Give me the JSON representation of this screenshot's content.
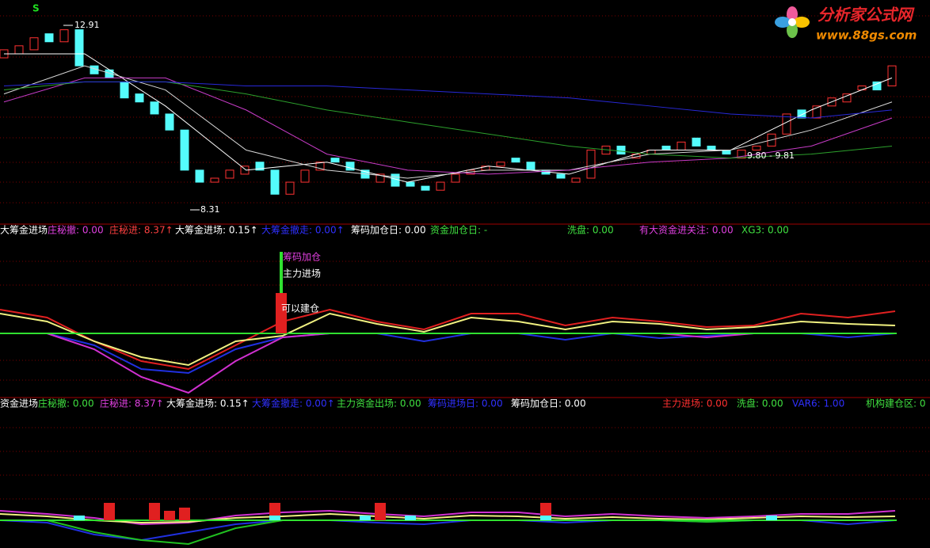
{
  "logo": {
    "name": "分析家公式网",
    "url": "www.88gs.com"
  },
  "price_panel": {
    "signal": "S",
    "high": 12.91,
    "low": 8.31,
    "range_label": "9.80 - 9.81",
    "candles": {
      "open": [
        12.1,
        12.2,
        12.3,
        12.7,
        12.5,
        12.8,
        11.9,
        11.8,
        11.5,
        11.2,
        11.0,
        10.7,
        10.3,
        9.3,
        9.0,
        9.1,
        9.2,
        9.5,
        9.3,
        8.7,
        9.0,
        9.3,
        9.6,
        9.5,
        9.3,
        9.0,
        9.2,
        9.0,
        8.9,
        8.8,
        9.0,
        9.2,
        9.3,
        9.4,
        9.6,
        9.5,
        9.3,
        9.2,
        9.0,
        9.1,
        9.7,
        9.9,
        9.6,
        9.7,
        9.9,
        9.8,
        10.1,
        9.9,
        9.8,
        9.6,
        9.8,
        9.9,
        10.2,
        10.8,
        10.6,
        10.9,
        11.0,
        11.3,
        11.5,
        11.4
      ],
      "close": [
        12.3,
        12.4,
        12.6,
        12.5,
        12.8,
        11.9,
        11.7,
        11.6,
        11.1,
        11.0,
        10.7,
        10.3,
        9.3,
        9.0,
        9.1,
        9.3,
        9.4,
        9.3,
        8.7,
        9.0,
        9.3,
        9.5,
        9.5,
        9.3,
        9.1,
        9.2,
        8.9,
        8.9,
        8.8,
        9.0,
        9.2,
        9.3,
        9.4,
        9.5,
        9.5,
        9.3,
        9.2,
        9.1,
        9.1,
        9.8,
        9.9,
        9.7,
        9.7,
        9.8,
        9.8,
        10.0,
        9.9,
        9.8,
        9.7,
        9.8,
        9.9,
        10.2,
        10.7,
        10.6,
        10.9,
        11.1,
        11.2,
        11.4,
        11.3,
        11.9
      ]
    },
    "ma_lines": [
      {
        "color": "#ffffff",
        "values": [
          12.2,
          12.2,
          10.9,
          9.3,
          9.5,
          9.0,
          9.4,
          9.2,
          9.8,
          9.8,
          10.8,
          11.6
        ]
      },
      {
        "color": "#d8d8d8",
        "values": [
          11.2,
          11.9,
          11.3,
          9.8,
          9.3,
          9.1,
          9.3,
          9.3,
          9.7,
          9.8,
          10.3,
          11.0
        ]
      },
      {
        "color": "#c83cc8",
        "values": [
          11.0,
          11.6,
          11.6,
          10.8,
          9.7,
          9.3,
          9.2,
          9.3,
          9.5,
          9.6,
          9.9,
          10.6
        ]
      },
      {
        "color": "#2ca02c",
        "values": [
          11.3,
          11.5,
          11.5,
          11.2,
          10.8,
          10.5,
          10.2,
          9.9,
          9.7,
          9.6,
          9.7,
          9.9
        ]
      },
      {
        "color": "#2828d8",
        "values": [
          11.4,
          11.5,
          11.5,
          11.4,
          11.4,
          11.3,
          11.2,
          11.1,
          10.9,
          10.7,
          10.6,
          10.8
        ]
      }
    ]
  },
  "panel2": {
    "header": [
      {
        "text": "大筹金进场",
        "color": "#ffffff"
      },
      {
        "text": "庄秘撤: 0.00",
        "color": "#e040e0"
      },
      {
        "text": "庄秘进: 8.37↑",
        "color": "#ff4040"
      },
      {
        "text": "大筹金进场: 0.15↑",
        "color": "#ffffff"
      },
      {
        "text": "大筹金撤走: 0.00↑",
        "color": "#3030ff"
      },
      {
        "text": "筹码加仓日: 0.00",
        "color": "#ffffff"
      },
      {
        "text": "资金加仓日: -",
        "color": "#40e040"
      },
      {
        "text": "洗盘: 0.00",
        "color": "#40e040"
      },
      {
        "text": "有大资金进关注: 0.00",
        "color": "#e040e0"
      },
      {
        "text": "XG3: 0.00",
        "color": "#40e040"
      }
    ],
    "annotations": [
      {
        "text": "筹码加仓",
        "color": "#e040e0"
      },
      {
        "text": "主力进场",
        "color": "#ffffff"
      },
      {
        "text": "可以建仓",
        "color": "#ffffff"
      }
    ],
    "signal_line": 10.3,
    "signal_bar": 5.1,
    "series": [
      {
        "color": "#e02020",
        "values": [
          3.0,
          2.0,
          -1.0,
          -3.5,
          -4.5,
          -1.5,
          1.5,
          3.0,
          1.5,
          0.5,
          2.5,
          2.5,
          1.0,
          2.0,
          1.5,
          0.8,
          1.0,
          2.5,
          2.0,
          2.8
        ]
      },
      {
        "color": "#f0f080",
        "values": [
          2.5,
          1.5,
          -1.0,
          -3.0,
          -4.0,
          -1.0,
          -0.3,
          2.5,
          1.2,
          0.2,
          2.0,
          1.5,
          0.5,
          1.5,
          1.2,
          0.5,
          0.8,
          1.5,
          1.2,
          1.0
        ]
      },
      {
        "color": "#2030e0",
        "values": [
          0,
          0,
          -1.5,
          -4.5,
          -5.0,
          -2.0,
          -0.5,
          0,
          0,
          -1.0,
          0,
          0,
          -0.8,
          0,
          -0.6,
          -0.3,
          0,
          0,
          -0.5,
          0
        ]
      },
      {
        "color": "#d030d0",
        "values": [
          0,
          0,
          -2.0,
          -5.5,
          -7.5,
          -3.5,
          -0.5,
          0,
          0,
          0,
          0,
          0,
          0,
          0,
          0,
          -0.5,
          0,
          0,
          0,
          0
        ]
      }
    ]
  },
  "panel3": {
    "header": [
      {
        "text": "资金进场",
        "color": "#ffffff"
      },
      {
        "text": "庄秘撤: 0.00",
        "color": "#40e040"
      },
      {
        "text": "庄秘进: 8.37↑",
        "color": "#e040e0"
      },
      {
        "text": "大筹金进场: 0.15↑",
        "color": "#ffffff"
      },
      {
        "text": "大筹金撤走: 0.00↑",
        "color": "#3030ff"
      },
      {
        "text": "主力资金出场: 0.00",
        "color": "#40e040"
      },
      {
        "text": "筹码进场日: 0.00",
        "color": "#3030ff"
      },
      {
        "text": "筹码加仓日: 0.00",
        "color": "#ffffff"
      },
      {
        "text": "主力进场: 0.00",
        "color": "#ff3030"
      },
      {
        "text": "洗盘: 0.00",
        "color": "#40e040"
      },
      {
        "text": "VAR6: 1.00",
        "color": "#3030ff"
      },
      {
        "text": "机构建仓区: 0",
        "color": "#40e040"
      }
    ],
    "red_bars": [
      null,
      null,
      null,
      null,
      null,
      null,
      null,
      2.2,
      null,
      null,
      2.2,
      1.2,
      1.6,
      null,
      null,
      null,
      null,
      null,
      2.2,
      null,
      null,
      null,
      null,
      null,
      null,
      2.2,
      null,
      null,
      null,
      null,
      null,
      null,
      null,
      null,
      null,
      null,
      2.2,
      null,
      null,
      null,
      null,
      null,
      null,
      null,
      null,
      null,
      null,
      null,
      null,
      null,
      null,
      null,
      null,
      null,
      null,
      null,
      null,
      null,
      null,
      null
    ],
    "cyan_bars": [
      null,
      null,
      null,
      null,
      null,
      0.6,
      null,
      null,
      null,
      null,
      null,
      null,
      null,
      null,
      null,
      null,
      null,
      null,
      0.6,
      null,
      null,
      null,
      null,
      null,
      0.6,
      null,
      null,
      0.6,
      null,
      null,
      null,
      null,
      null,
      null,
      null,
      null,
      0.6,
      null,
      null,
      null,
      null,
      null,
      null,
      null,
      null,
      null,
      null,
      null,
      null,
      null,
      null,
      0.6,
      null,
      null,
      null,
      null,
      null,
      null,
      null,
      null
    ],
    "series": [
      {
        "color": "#d030d0",
        "values": [
          1.2,
          0.8,
          0.3,
          -0.5,
          -0.3,
          0.6,
          1.0,
          1.2,
          0.8,
          0.5,
          1.0,
          1.0,
          0.5,
          0.8,
          0.5,
          0.3,
          0.5,
          0.8,
          0.8,
          1.2
        ]
      },
      {
        "color": "#f0f080",
        "values": [
          0.8,
          0.5,
          0,
          -0.3,
          -0.2,
          0.3,
          0.5,
          0.8,
          0.5,
          0.2,
          0.6,
          0.5,
          0.2,
          0.4,
          0.2,
          0.1,
          0.3,
          0.5,
          0.4,
          0.5
        ]
      },
      {
        "color": "#2030e0",
        "values": [
          0,
          -0.3,
          -1.8,
          -2.5,
          -1.5,
          -0.5,
          0,
          0,
          -0.3,
          -0.5,
          0,
          0,
          -0.3,
          0,
          0,
          -0.2,
          0,
          0,
          -0.5,
          0
        ]
      },
      {
        "color": "#20c020",
        "values": [
          0,
          0,
          -1.5,
          -2.5,
          -3.0,
          -1.0,
          0,
          0,
          0,
          0,
          0,
          0,
          0,
          0,
          0,
          -0.2,
          0,
          0,
          0,
          0
        ]
      }
    ]
  }
}
